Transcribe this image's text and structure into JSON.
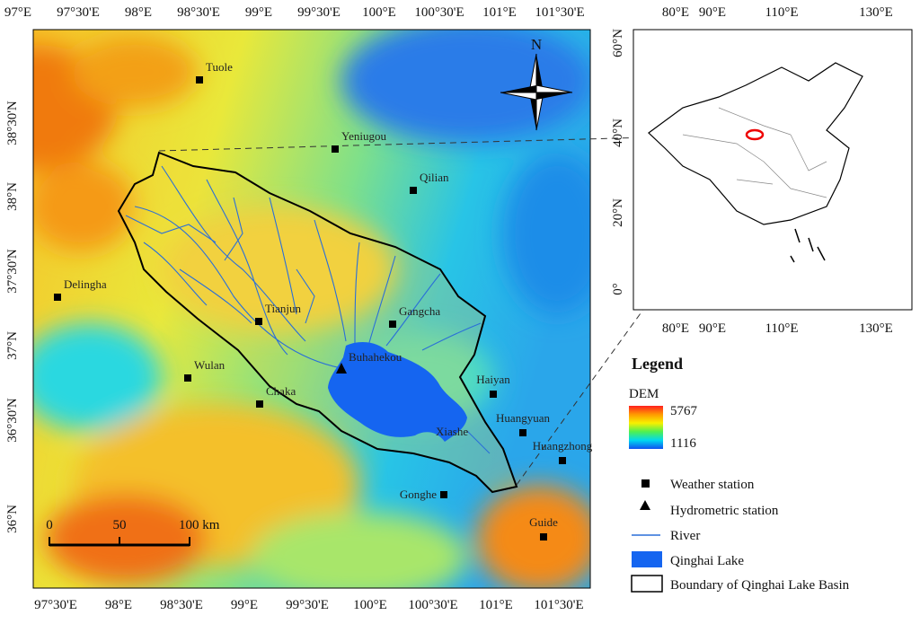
{
  "main_map": {
    "top_axis": [
      "97°E",
      "97°30'E",
      "98°E",
      "98°30'E",
      "99°E",
      "99°30'E",
      "100°E",
      "100°30'E",
      "101°E",
      "101°30'E"
    ],
    "bottom_axis": [
      "97°30'E",
      "98°E",
      "98°30'E",
      "99°E",
      "99°30'E",
      "100°E",
      "100°30'E",
      "101°E",
      "101°30'E"
    ],
    "left_axis": [
      "38°30'N",
      "38°N",
      "37°30'N",
      "37°N",
      "36°30'N",
      "36°N"
    ],
    "north_label": "N",
    "weather_stations": [
      "Tuole",
      "Yeniugou",
      "Qilian",
      "Delingha",
      "Tianjun",
      "Gangcha",
      "Wulan",
      "Chaka",
      "Haiyan",
      "Huangyuan",
      "Huangzhong",
      "Gonghe",
      "Guide"
    ],
    "hydrometric_station": "Buhahekou",
    "place_label": "Xiashe",
    "scale_bar": [
      "0",
      "50",
      "100 km"
    ]
  },
  "inset_map": {
    "top_axis": [
      "80°E",
      "90°E",
      "110°E",
      "130°E"
    ],
    "bottom_axis": [
      "80°E",
      "90°E",
      "110°E",
      "130°E"
    ],
    "left_axis": [
      "60°N",
      "40°N",
      "20°N",
      "0°"
    ]
  },
  "legend": {
    "title": "Legend",
    "dem_label": "DEM",
    "dem_max": 5767,
    "dem_min": 1116,
    "items": [
      "Weather station",
      "Hydrometric station",
      "River",
      "Qinghai Lake",
      "Boundary of Qinghai Lake Basin"
    ]
  }
}
